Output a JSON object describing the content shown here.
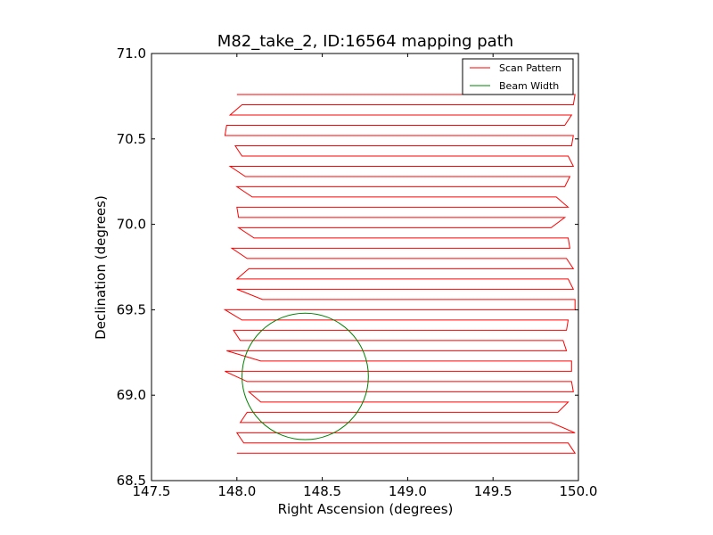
{
  "chart_data": {
    "type": "line",
    "title": "M82_take_2, ID:16564 mapping path",
    "xlabel": "Right Ascension (degrees)",
    "ylabel": "Declination (degrees)",
    "xlim": [
      147.5,
      150.0
    ],
    "ylim": [
      68.5,
      71.0
    ],
    "xticks": [
      "147.5",
      "148.0",
      "148.5",
      "149.0",
      "149.5",
      "150.0"
    ],
    "yticks": [
      "68.5",
      "69.0",
      "69.5",
      "70.0",
      "70.5",
      "71.0"
    ],
    "grid": false,
    "legend_position": "top-right",
    "colors": {
      "scan": "#ff0000",
      "beam": "#008000"
    },
    "series": [
      {
        "name": "Scan Pattern",
        "style": "line",
        "x": [
          148.0,
          149.98,
          149.94,
          148.04,
          148.0,
          149.98,
          149.84,
          148.02,
          148.06,
          149.88,
          149.94,
          148.14,
          148.07,
          149.97,
          149.96,
          148.06,
          147.93,
          149.96,
          149.96,
          148.14,
          147.94,
          149.93,
          149.91,
          148.02,
          147.98,
          149.93,
          149.94,
          148.03,
          147.93,
          149.98,
          149.98,
          148.15,
          148.0,
          149.97,
          149.94,
          148.0,
          148.07,
          149.97,
          149.93,
          148.06,
          147.97,
          149.95,
          149.94,
          148.1,
          148.01,
          149.84,
          149.92,
          148.01,
          148.0,
          149.94,
          149.87,
          148.09,
          148.0,
          149.92,
          149.95,
          148.05,
          147.96,
          149.97,
          149.94,
          148.03,
          147.99,
          149.96,
          149.97,
          147.93,
          147.94,
          149.92,
          149.96,
          147.96,
          148.03,
          149.97,
          149.98,
          148.0
        ],
        "y": [
          68.66,
          68.66,
          68.72,
          68.72,
          68.78,
          68.78,
          68.84,
          68.84,
          68.9,
          68.9,
          68.96,
          68.96,
          69.02,
          69.02,
          69.08,
          69.08,
          69.14,
          69.14,
          69.2,
          69.2,
          69.26,
          69.26,
          69.32,
          69.32,
          69.38,
          69.38,
          69.44,
          69.44,
          69.5,
          69.5,
          69.56,
          69.56,
          69.62,
          69.62,
          69.68,
          69.68,
          69.74,
          69.74,
          69.8,
          69.8,
          69.86,
          69.86,
          69.92,
          69.92,
          69.98,
          69.98,
          70.04,
          70.04,
          70.1,
          70.1,
          70.16,
          70.16,
          70.22,
          70.22,
          70.28,
          70.28,
          70.34,
          70.34,
          70.4,
          70.4,
          70.46,
          70.46,
          70.52,
          70.52,
          70.58,
          70.58,
          70.64,
          70.64,
          70.7,
          70.7,
          70.76,
          70.76
        ]
      },
      {
        "name": "Beam Width",
        "style": "circle",
        "center": [
          148.4,
          69.11
        ],
        "radius": 0.37
      }
    ]
  }
}
